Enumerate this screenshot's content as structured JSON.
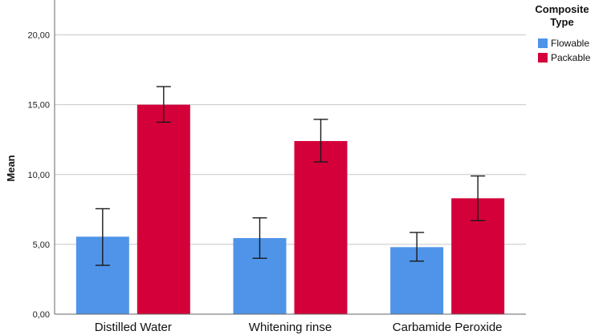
{
  "chart_data": {
    "type": "bar",
    "title": "",
    "xlabel": "",
    "ylabel": "Mean",
    "ylim": [
      0,
      22.5
    ],
    "yticks": [
      0,
      5,
      10,
      15,
      20
    ],
    "ytick_labels": [
      "0,00",
      "5,00",
      "10,00",
      "15,00",
      "20,00"
    ],
    "grid": true,
    "categories": [
      "Distilled Water",
      "Whitening rinse",
      "Carbamide Peroxide"
    ],
    "legend": {
      "title_line1": "Composite",
      "title_line2": "Type",
      "placement": "top-right"
    },
    "series": [
      {
        "name": "Flowable",
        "color": "#4f94e8",
        "values": [
          5.55,
          5.45,
          4.8
        ],
        "err_low": [
          3.5,
          4.0,
          3.8
        ],
        "err_high": [
          7.55,
          6.9,
          5.85
        ]
      },
      {
        "name": "Packable",
        "color": "#d4003a",
        "values": [
          15.0,
          12.4,
          8.3
        ],
        "err_low": [
          13.75,
          10.9,
          6.7
        ],
        "err_high": [
          16.3,
          13.95,
          9.9
        ]
      }
    ]
  }
}
